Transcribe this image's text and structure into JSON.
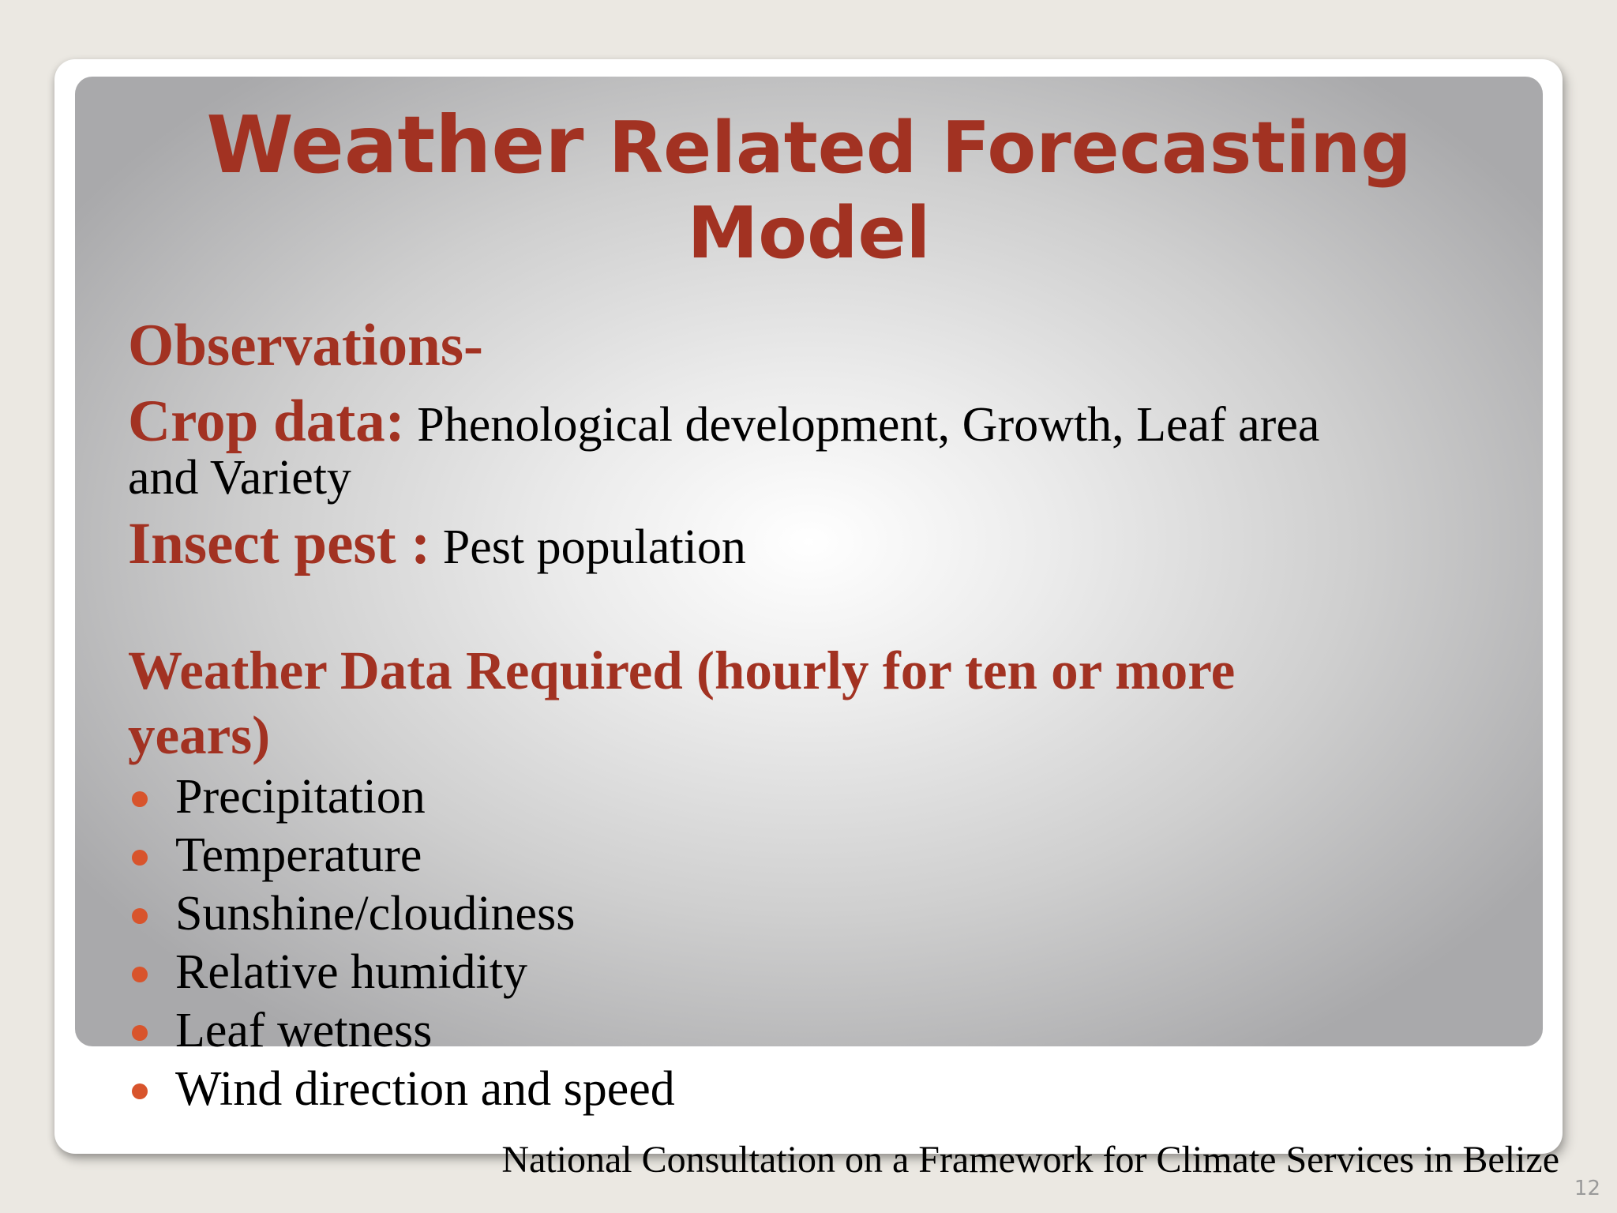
{
  "slide": {
    "title_first_word": "Weather",
    "title_rest": " Related Forecasting Model",
    "observations_heading": "Observations-",
    "crop_label": "Crop data:",
    "crop_text": " Phenological development, Growth, Leaf area",
    "crop_text_continued": "and Variety",
    "insect_label": "Insect pest :",
    "insect_text": " Pest population",
    "weather_heading": "Weather Data Required (hourly for ten or more years)",
    "weather_items": [
      "Precipitation",
      "Temperature",
      "Sunshine/cloudiness",
      "Relative humidity",
      "Leaf wetness",
      "Wind direction and speed"
    ],
    "footer": "National Consultation on a Framework for Climate Services in Belize",
    "page_number": "12"
  },
  "colors": {
    "accent": "#a23222",
    "bullet": "#d8542c",
    "background": "#ebe8e2"
  }
}
